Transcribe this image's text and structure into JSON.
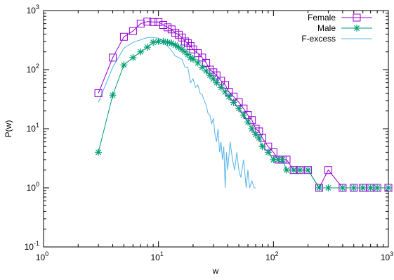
{
  "chart_data": {
    "type": "line",
    "title": "",
    "xlabel": "w",
    "ylabel": "P(w)",
    "xscale": "log",
    "yscale": "log",
    "xlim": [
      1,
      1000
    ],
    "ylim": [
      0.1,
      1000
    ],
    "grid": false,
    "legend_position": "top-right",
    "x_ticks": [
      {
        "base": "10",
        "exp": "0",
        "value": 1
      },
      {
        "base": "10",
        "exp": "1",
        "value": 10
      },
      {
        "base": "10",
        "exp": "2",
        "value": 100
      },
      {
        "base": "10",
        "exp": "3",
        "value": 1000
      }
    ],
    "y_ticks": [
      {
        "base": "10",
        "exp": "-1",
        "value": 0.1
      },
      {
        "base": "10",
        "exp": "0",
        "value": 1
      },
      {
        "base": "10",
        "exp": "1",
        "value": 10
      },
      {
        "base": "10",
        "exp": "2",
        "value": 100
      },
      {
        "base": "10",
        "exp": "3",
        "value": 1000
      }
    ],
    "series": [
      {
        "name": "Female",
        "color": "#9400d3",
        "marker": "open-square",
        "x": [
          3,
          4,
          5,
          6,
          7,
          8,
          9,
          10,
          11,
          12,
          13,
          14,
          15,
          16,
          17,
          18,
          19,
          20,
          22,
          24,
          26,
          28,
          30,
          32,
          35,
          38,
          41,
          45,
          50,
          55,
          60,
          65,
          70,
          75,
          80,
          90,
          100,
          110,
          120,
          130,
          150,
          170,
          200,
          250,
          300,
          400,
          500,
          600,
          700,
          800,
          1000
        ],
        "y": [
          40,
          160,
          360,
          450,
          600,
          650,
          640,
          640,
          570,
          520,
          480,
          420,
          390,
          350,
          300,
          280,
          250,
          220,
          190,
          160,
          130,
          100,
          90,
          80,
          65,
          55,
          42,
          35,
          28,
          22,
          17,
          14,
          10,
          9,
          7,
          5,
          4,
          3,
          3,
          3,
          2,
          2,
          2,
          1,
          2,
          1,
          1,
          1,
          1,
          1,
          1
        ]
      },
      {
        "name": "Male",
        "color": "#009e73",
        "marker": "asterisk",
        "x": [
          3,
          4,
          5,
          6,
          7,
          8,
          9,
          10,
          11,
          12,
          13,
          14,
          15,
          16,
          17,
          18,
          19,
          20,
          22,
          24,
          26,
          28,
          30,
          32,
          35,
          38,
          41,
          45,
          50,
          55,
          60,
          65,
          70,
          75,
          80,
          90,
          100,
          110,
          120,
          130,
          150,
          170,
          200,
          250,
          300,
          400,
          500,
          600,
          700,
          800,
          1000
        ],
        "y": [
          4,
          37,
          120,
          160,
          200,
          240,
          290,
          300,
          300,
          290,
          280,
          260,
          240,
          220,
          200,
          180,
          160,
          150,
          130,
          110,
          95,
          80,
          70,
          60,
          50,
          42,
          35,
          28,
          22,
          17,
          13,
          10,
          8,
          7,
          5,
          4,
          3,
          3,
          3,
          2,
          2,
          2,
          2,
          1,
          1,
          1,
          1,
          1,
          1,
          1,
          1
        ]
      },
      {
        "name": "F-excess",
        "color": "#56b4e9",
        "marker": "none",
        "x": [
          3,
          4,
          5,
          6,
          7,
          8,
          9,
          10,
          11,
          12,
          13,
          14,
          15,
          16,
          17,
          18,
          19,
          20,
          21,
          22,
          23,
          24,
          25,
          26,
          27,
          28,
          29,
          30,
          31,
          32,
          33,
          34,
          35,
          36,
          37,
          38,
          39,
          40,
          42,
          44,
          46,
          48,
          50,
          52,
          55,
          58,
          60,
          62,
          65,
          68,
          70
        ],
        "y": [
          28,
          110,
          230,
          290,
          320,
          350,
          350,
          340,
          280,
          250,
          210,
          170,
          160,
          150,
          110,
          110,
          60,
          70,
          50,
          55,
          40,
          38,
          30,
          25,
          18,
          17,
          12,
          15,
          8,
          6,
          10,
          4,
          6,
          3,
          5,
          1,
          4,
          2,
          6,
          3,
          2,
          4,
          2,
          1.5,
          3,
          1,
          2,
          1,
          1.3,
          1,
          1
        ]
      }
    ]
  }
}
